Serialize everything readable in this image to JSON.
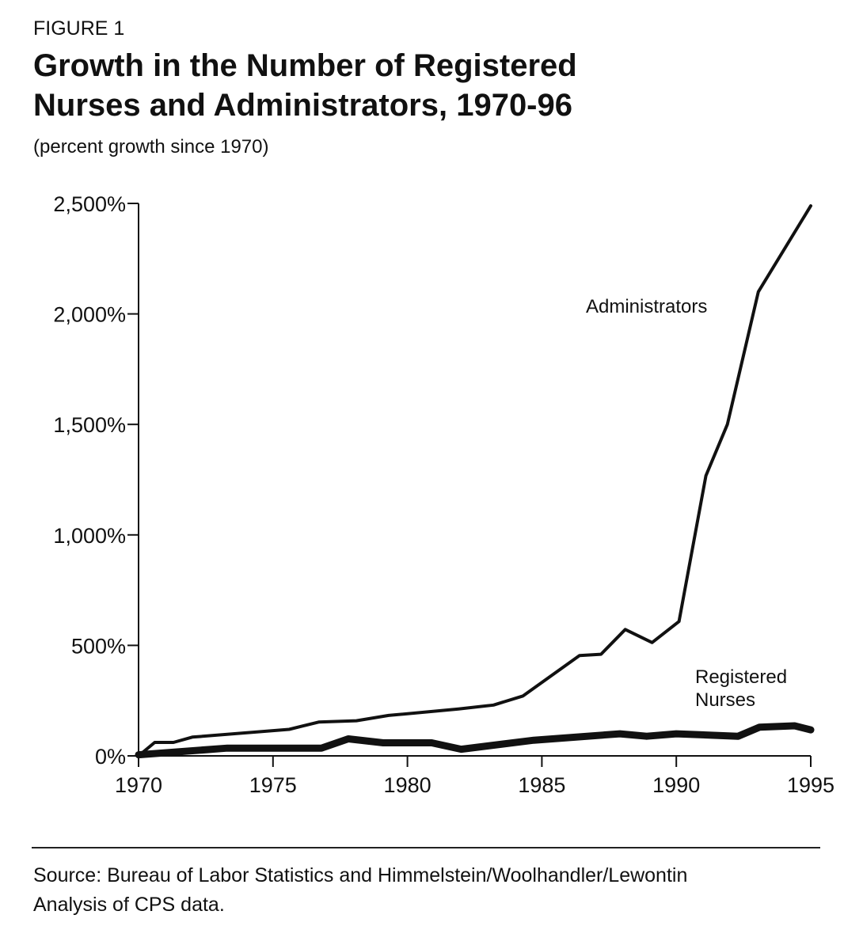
{
  "figure_label": "FIGURE 1",
  "title_line1": "Growth in the Number of Registered",
  "title_line2": "Nurses and Administrators, 1970-96",
  "subtitle": "(percent growth since 1970)",
  "source_line1": "Source: Bureau of Labor Statistics and Himmelstein/Woolhandler/Lewontin",
  "source_line2": "Analysis of CPS data.",
  "chart_data": {
    "type": "line",
    "title": "Growth in the Number of Registered Nurses and Administrators, 1970-96",
    "subtitle": "(percent growth since 1970)",
    "xlabel": "",
    "ylabel": "",
    "xlim": [
      1970,
      1995
    ],
    "ylim": [
      0,
      2500
    ],
    "x_ticks": [
      1970,
      1975,
      1980,
      1985,
      1990,
      1995
    ],
    "x_tick_labels": [
      "1970",
      "1975",
      "1980",
      "1985",
      "1990",
      "1995"
    ],
    "y_ticks": [
      0,
      500,
      1000,
      1500,
      2000,
      2500
    ],
    "y_tick_labels": [
      "0%",
      "500%",
      "1,000%",
      "1,500%",
      "2,000%",
      "2,500%"
    ],
    "grid": false,
    "series": [
      {
        "name": "Administrators",
        "label_lines": [
          "Administrators"
        ],
        "x": [
          1970,
          1970.6,
          1971.3,
          1972.0,
          1975.6,
          1976.7,
          1978.1,
          1979.3,
          1981.9,
          1983.2,
          1984.3,
          1986.4,
          1987.2,
          1988.1,
          1989.1,
          1990.1,
          1991.1,
          1991.9,
          1993.05,
          1995
        ],
        "values": [
          0,
          61,
          61,
          85,
          120,
          153,
          159,
          183,
          212,
          230,
          271,
          454,
          460,
          572,
          513,
          608,
          1268,
          1500,
          2100,
          2489
        ]
      },
      {
        "name": "Registered Nurses",
        "label_lines": [
          "Registered",
          "Nurses"
        ],
        "x": [
          1970,
          1973.3,
          1976.8,
          1977.8,
          1979.1,
          1980.9,
          1982.0,
          1984.7,
          1987.9,
          1988.9,
          1990.0,
          1992.3,
          1993.1,
          1994.4,
          1995
        ],
        "values": [
          5,
          35,
          35,
          77,
          59,
          59,
          30,
          71,
          100,
          89,
          100,
          89,
          130,
          136,
          118
        ]
      }
    ]
  }
}
